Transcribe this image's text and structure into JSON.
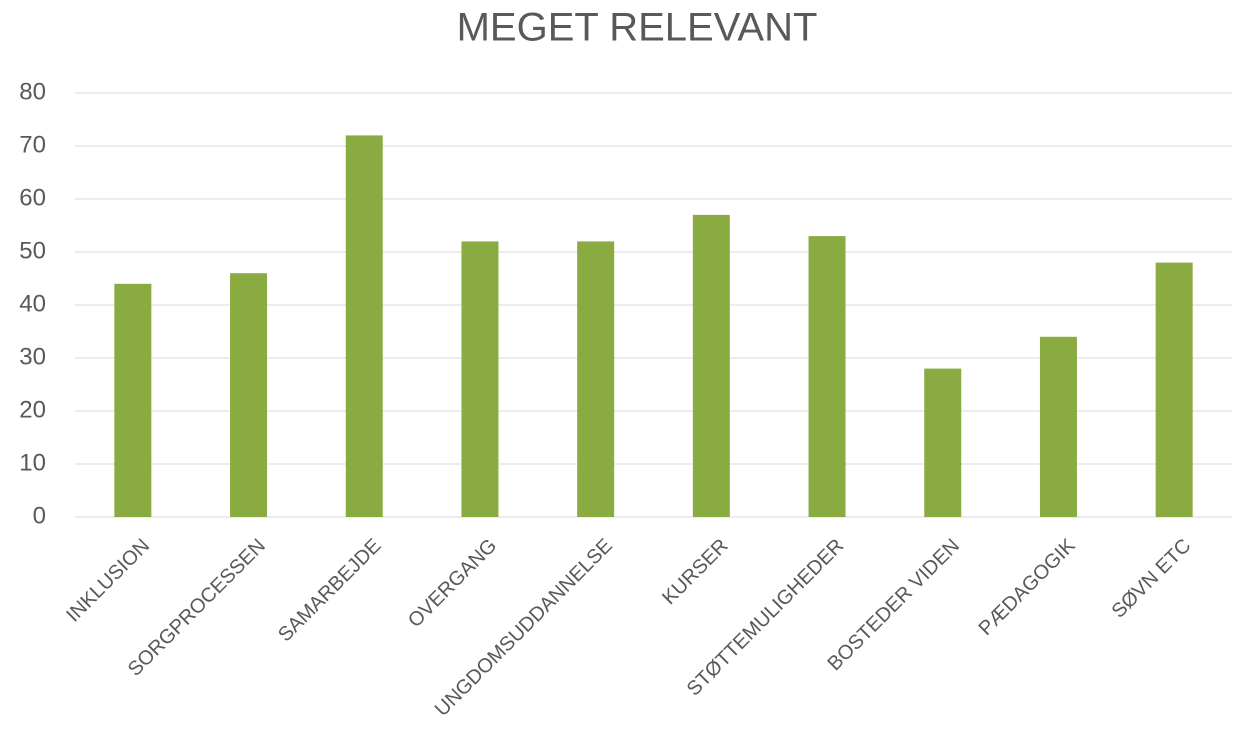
{
  "chart_data": {
    "type": "bar",
    "title": "MEGET RELEVANT",
    "categories": [
      "INKLUSION",
      "SORGPROCESSEN",
      "SAMARBEJDE",
      "OVERGANG",
      "UNGDOMSUDDANNELSE",
      "KURSER",
      "STØTTEMULIGHEDER",
      "BOSTEDER VIDEN",
      "PÆDAGOGIK",
      "SØVN ETC"
    ],
    "values": [
      44,
      46,
      72,
      52,
      52,
      57,
      53,
      28,
      34,
      48
    ],
    "color": "#8aab42",
    "ylim": [
      0,
      80
    ],
    "yticks": [
      0,
      10,
      20,
      30,
      40,
      50,
      60,
      70,
      80
    ],
    "grid": true
  }
}
